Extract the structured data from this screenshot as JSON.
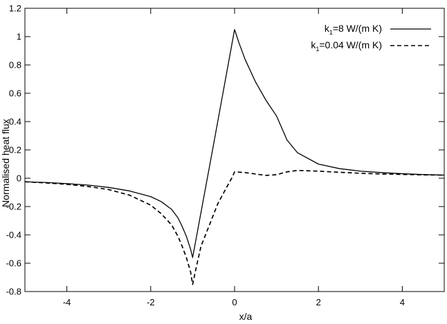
{
  "chart_data": {
    "type": "line",
    "xlabel": "x/a",
    "ylabel": "Normalised heat flux",
    "xlim": [
      -5,
      5
    ],
    "ylim": [
      -0.8,
      1.2
    ],
    "xticks": [
      -4,
      -2,
      0,
      2,
      4
    ],
    "xtick_labels": [
      "-4",
      "-2",
      "0",
      "2",
      "4"
    ],
    "yticks": [
      -0.8,
      -0.6,
      -0.4,
      -0.2,
      0,
      0.2,
      0.4,
      0.6,
      0.8,
      1,
      1.2
    ],
    "ytick_labels": [
      "-0.8",
      "-0.6",
      "-0.4",
      "-0.2",
      "0",
      "0.2",
      "0.4",
      "0.6",
      "0.8",
      "1",
      "1.2"
    ],
    "grid": false,
    "legend_position": "top-right",
    "series": [
      {
        "name": "k1=8 W/(m K)",
        "legend_main": "k",
        "legend_sub": "1",
        "legend_rest": "=8 W/(m K)",
        "style": "solid",
        "color": "#000000",
        "x": [
          -5,
          -4.5,
          -4,
          -3.5,
          -3,
          -2.5,
          -2,
          -1.75,
          -1.5,
          -1.35,
          -1.25,
          -1.15,
          -1.05,
          -1,
          -0.5,
          0,
          0.1,
          0.25,
          0.5,
          0.75,
          1,
          1.25,
          1.5,
          2,
          2.5,
          3,
          3.5,
          4,
          4.5,
          5
        ],
        "y": [
          -0.025,
          -0.03,
          -0.038,
          -0.048,
          -0.065,
          -0.09,
          -0.13,
          -0.165,
          -0.22,
          -0.28,
          -0.34,
          -0.41,
          -0.5,
          -0.56,
          0.24,
          1.05,
          0.96,
          0.84,
          0.68,
          0.55,
          0.44,
          0.27,
          0.18,
          0.1,
          0.068,
          0.05,
          0.04,
          0.032,
          0.026,
          0.022
        ]
      },
      {
        "name": "k1=0.04 W/(m K)",
        "legend_main": "k",
        "legend_sub": "1",
        "legend_rest": "=0.04 W/(m K)",
        "style": "dashed",
        "color": "#000000",
        "x": [
          -5,
          -4.5,
          -4,
          -3.5,
          -3,
          -2.5,
          -2,
          -1.75,
          -1.5,
          -1.35,
          -1.25,
          -1.15,
          -1.05,
          -1,
          -0.9,
          -0.8,
          -0.6,
          -0.4,
          -0.2,
          -0.05,
          0,
          0.25,
          0.5,
          0.75,
          1,
          1.25,
          1.5,
          2,
          2.5,
          3,
          3.5,
          4,
          4.5,
          5
        ],
        "y": [
          -0.025,
          -0.033,
          -0.043,
          -0.058,
          -0.08,
          -0.12,
          -0.19,
          -0.25,
          -0.33,
          -0.41,
          -0.48,
          -0.56,
          -0.66,
          -0.75,
          -0.61,
          -0.48,
          -0.33,
          -0.18,
          -0.07,
          0.01,
          0.045,
          0.04,
          0.03,
          0.02,
          0.025,
          0.045,
          0.055,
          0.05,
          0.042,
          0.035,
          0.03,
          0.027,
          0.024,
          0.022
        ]
      }
    ]
  }
}
